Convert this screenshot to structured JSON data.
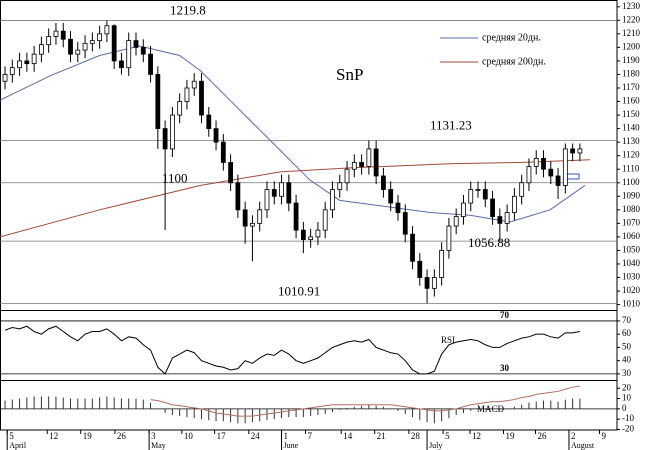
{
  "chart_data": [
    {
      "type": "candlestick",
      "title": "SnP",
      "x": [
        0,
        1,
        2,
        3,
        4,
        5,
        6,
        7,
        8,
        9,
        10,
        11,
        12,
        13,
        14,
        15,
        16,
        17,
        18,
        19,
        20,
        21,
        22,
        23,
        24,
        25,
        26,
        27,
        28,
        29,
        30,
        31,
        32,
        33,
        34,
        35,
        36,
        37,
        38,
        39,
        40,
        41,
        42,
        43,
        44,
        45,
        46,
        47,
        48,
        49,
        50,
        51,
        52,
        53,
        54,
        55,
        56,
        57,
        58,
        59,
        60,
        61,
        62,
        63,
        64,
        65,
        66,
        67,
        68,
        69,
        70,
        71,
        72,
        73,
        74,
        75,
        76,
        77,
        78,
        79
      ],
      "open": [
        1175,
        1180,
        1185,
        1190,
        1188,
        1195,
        1202,
        1208,
        1212,
        1206,
        1195,
        1198,
        1203,
        1205,
        1210,
        1216,
        1190,
        1185,
        1205,
        1200,
        1195,
        1180,
        1140,
        1125,
        1150,
        1160,
        1170,
        1175,
        1150,
        1140,
        1130,
        1115,
        1100,
        1080,
        1068,
        1070,
        1080,
        1095,
        1090,
        1100,
        1085,
        1065,
        1058,
        1060,
        1065,
        1080,
        1095,
        1100,
        1110,
        1115,
        1112,
        1125,
        1105,
        1095,
        1085,
        1078,
        1062,
        1042,
        1030,
        1022,
        1030,
        1050,
        1068,
        1075,
        1085,
        1095,
        1095,
        1088,
        1075,
        1070,
        1078,
        1090,
        1100,
        1112,
        1118,
        1110,
        1105,
        1098,
        1125,
        1122
      ],
      "high": [
        1186,
        1191,
        1196,
        1196,
        1201,
        1208,
        1214,
        1218,
        1218,
        1212,
        1204,
        1209,
        1211,
        1216,
        1219.8,
        1217,
        1196,
        1211,
        1211,
        1206,
        1201,
        1186,
        1146,
        1156,
        1166,
        1176,
        1181,
        1181,
        1156,
        1146,
        1136,
        1121,
        1106,
        1086,
        1076,
        1086,
        1101,
        1101,
        1106,
        1106,
        1091,
        1071,
        1066,
        1071,
        1086,
        1101,
        1106,
        1116,
        1121,
        1121,
        1131.23,
        1131,
        1111,
        1101,
        1091,
        1084,
        1068,
        1048,
        1036,
        1036,
        1056,
        1074,
        1081,
        1091,
        1101,
        1101,
        1101,
        1094,
        1081,
        1084,
        1096,
        1106,
        1118,
        1124,
        1124,
        1116,
        1111,
        1129,
        1129,
        1129
      ],
      "low": [
        1169,
        1174,
        1179,
        1182,
        1182,
        1189,
        1196,
        1202,
        1200,
        1189,
        1189,
        1192,
        1197,
        1199,
        1204,
        1184,
        1180,
        1179,
        1194,
        1189,
        1174,
        1125,
        1065,
        1119,
        1144,
        1154,
        1164,
        1144,
        1134,
        1124,
        1109,
        1094,
        1074,
        1055,
        1042,
        1064,
        1074,
        1084,
        1084,
        1079,
        1059,
        1048,
        1052,
        1054,
        1059,
        1074,
        1089,
        1094,
        1104,
        1106,
        1106,
        1099,
        1089,
        1079,
        1072,
        1056,
        1036,
        1024,
        1010.91,
        1016,
        1024,
        1044,
        1062,
        1069,
        1079,
        1089,
        1082,
        1069,
        1056.88,
        1064,
        1072,
        1084,
        1094,
        1106,
        1104,
        1099,
        1088,
        1092,
        1116,
        1116
      ],
      "close": [
        1180,
        1185,
        1190,
        1188,
        1195,
        1202,
        1208,
        1212,
        1206,
        1195,
        1198,
        1203,
        1205,
        1210,
        1216,
        1190,
        1185,
        1205,
        1200,
        1195,
        1180,
        1140,
        1125,
        1150,
        1160,
        1170,
        1175,
        1150,
        1140,
        1130,
        1115,
        1100,
        1080,
        1068,
        1070,
        1080,
        1095,
        1090,
        1100,
        1085,
        1065,
        1058,
        1060,
        1065,
        1080,
        1095,
        1100,
        1110,
        1115,
        1112,
        1125,
        1105,
        1095,
        1085,
        1078,
        1062,
        1042,
        1030,
        1022,
        1030,
        1050,
        1068,
        1075,
        1085,
        1095,
        1095,
        1088,
        1075,
        1070,
        1078,
        1090,
        1100,
        1112,
        1118,
        1110,
        1105,
        1098,
        1125,
        1122,
        1125
      ],
      "series": [
        {
          "name": "средняя 20дн.",
          "color": "#5a6aa8",
          "x": [
            -0.7,
            6.2,
            13.0,
            18.5,
            24.0,
            26.8,
            30.9,
            37.8,
            41.9,
            46.0,
            51.5,
            58.4,
            63.9,
            69.4,
            74.9,
            79.7
          ],
          "values": [
            1161,
            1179,
            1194,
            1201,
            1194,
            1183,
            1161,
            1124,
            1102,
            1087,
            1083,
            1078,
            1076,
            1071,
            1080,
            1098
          ]
        },
        {
          "name": "средняя 200дн.",
          "color": "#a04a38",
          "x": [
            -0.7,
            13.0,
            26.8,
            37.8,
            47.4,
            61.1,
            70.7,
            80.4
          ],
          "values": [
            1060,
            1080,
            1098,
            1108,
            1111,
            1114,
            1115,
            1117
          ]
        }
      ],
      "levels": [
        1219.8,
        1131.23,
        1100,
        1056.88,
        1010.91
      ],
      "xlim": [
        -0.69,
        84.1
      ],
      "ylim": [
        1006,
        1235
      ],
      "yticks": [
        1010,
        1020,
        1030,
        1040,
        1050,
        1060,
        1070,
        1080,
        1090,
        1100,
        1110,
        1120,
        1130,
        1140,
        1150,
        1160,
        1170,
        1180,
        1190,
        1200,
        1210,
        1220,
        1230
      ],
      "xticks": [
        {
          "value": 0.3,
          "label": "5"
        },
        {
          "value": 5.8,
          "label": "12"
        },
        {
          "value": 10.4,
          "label": "19"
        },
        {
          "value": 15.1,
          "label": "26"
        },
        {
          "value": 19.8,
          "label": "3"
        },
        {
          "value": 24.3,
          "label": "10"
        },
        {
          "value": 28.8,
          "label": "17"
        },
        {
          "value": 33.5,
          "label": "24"
        },
        {
          "value": 38.0,
          "label": "1"
        },
        {
          "value": 41.3,
          "label": "7"
        },
        {
          "value": 46.2,
          "label": "14"
        },
        {
          "value": 50.8,
          "label": "21"
        },
        {
          "value": 55.5,
          "label": "28"
        },
        {
          "value": 60.2,
          "label": "5"
        },
        {
          "value": 63.9,
          "label": "12"
        },
        {
          "value": 68.5,
          "label": "19"
        },
        {
          "value": 72.9,
          "label": "26"
        },
        {
          "value": 77.5,
          "label": "2"
        },
        {
          "value": 81.7,
          "label": "9"
        }
      ],
      "months": [
        {
          "value": 0.3,
          "label": "April"
        },
        {
          "value": 19.8,
          "label": "May"
        },
        {
          "value": 38.0,
          "label": "June"
        },
        {
          "value": 58.0,
          "label": "July"
        },
        {
          "value": 77.5,
          "label": "August"
        }
      ]
    },
    {
      "type": "line",
      "label": "RSI",
      "color": "#000000",
      "values": [
        63,
        65,
        64,
        66,
        62,
        60,
        64,
        66,
        62,
        58,
        55,
        60,
        62,
        62,
        64,
        60,
        55,
        58,
        57,
        52,
        48,
        35,
        30,
        42,
        45,
        48,
        46,
        40,
        38,
        36,
        35,
        33,
        34,
        40,
        38,
        42,
        45,
        44,
        48,
        45,
        40,
        38,
        40,
        42,
        46,
        50,
        52,
        54,
        55,
        54,
        56,
        50,
        48,
        46,
        45,
        40,
        33,
        30,
        30,
        32,
        45,
        52,
        54,
        55,
        56,
        55,
        52,
        50,
        50,
        53,
        55,
        57,
        58,
        60,
        60,
        58,
        57,
        61,
        61,
        62
      ],
      "levels": [
        70,
        30
      ],
      "ylim": [
        25.4,
        77.5
      ],
      "yticks": [
        70,
        60,
        50,
        40,
        30
      ]
    },
    {
      "type": "bar",
      "label": "MACD",
      "color": "#333333",
      "line_color": "#b07060",
      "values": [
        8,
        9,
        10,
        11,
        12,
        12,
        12,
        12,
        11,
        10,
        10,
        10,
        10,
        11,
        12,
        11,
        10,
        10,
        10,
        9,
        6,
        0,
        -4,
        -6,
        -7,
        -8,
        -9,
        -10,
        -11,
        -12,
        -12,
        -13,
        -14,
        -14,
        -13,
        -12,
        -11,
        -10,
        -9,
        -8,
        -8,
        -8,
        -7,
        -6,
        -5,
        -3,
        -1,
        1,
        2,
        3,
        4,
        3,
        2,
        0,
        -2,
        -5,
        -8,
        -11,
        -13,
        -14,
        -12,
        -9,
        -6,
        -4,
        -2,
        -1,
        -1,
        -1,
        -1,
        0,
        2,
        4,
        6,
        7,
        8,
        8,
        7,
        9,
        10,
        10
      ],
      "line_values": [
        null,
        null,
        null,
        null,
        null,
        null,
        null,
        null,
        null,
        null,
        null,
        null,
        null,
        null,
        null,
        null,
        null,
        null,
        null,
        null,
        9,
        8,
        6,
        4,
        3,
        2,
        1,
        0,
        -2,
        -4,
        -5,
        -6,
        -7,
        -7,
        -7,
        -6,
        -5,
        -4,
        -3,
        -2,
        -1,
        0,
        1,
        2,
        3,
        4,
        4,
        4,
        4,
        4,
        4,
        4,
        4,
        4,
        3,
        2,
        1,
        0,
        -1,
        -2,
        -2,
        -1,
        0,
        2,
        4,
        5,
        6,
        7,
        7,
        8,
        9,
        11,
        12,
        14,
        15,
        16,
        17,
        19,
        21,
        22
      ],
      "ylim": [
        -20.5,
        27
      ],
      "yticks": [
        20,
        10,
        0,
        -10,
        -20
      ]
    }
  ]
}
